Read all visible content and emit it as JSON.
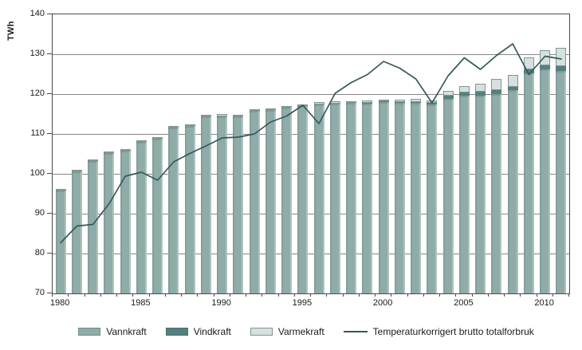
{
  "y_axis": {
    "title": "TWh"
  },
  "chart_data": {
    "type": "bar",
    "stacked": true,
    "title": "",
    "ylabel": "TWh",
    "ylim": [
      70,
      140
    ],
    "ytick_step": 10,
    "grid": true,
    "legend_position": "bottom",
    "years": [
      1980,
      1981,
      1982,
      1983,
      1984,
      1985,
      1986,
      1987,
      1988,
      1989,
      1990,
      1991,
      1992,
      1993,
      1994,
      1995,
      1996,
      1997,
      1998,
      1999,
      2000,
      2001,
      2002,
      2003,
      2004,
      2005,
      2006,
      2007,
      2008,
      2009,
      2010,
      2011
    ],
    "xtick_years": [
      1980,
      1985,
      1990,
      1995,
      2000,
      2005,
      2010
    ],
    "series": [
      {
        "name": "Vannkraft",
        "type": "bar",
        "color": "#8FACA8",
        "border_color": "#6F8F8B",
        "values": [
          95.9,
          100.7,
          103.2,
          105.2,
          105.8,
          108.0,
          108.9,
          111.7,
          112.0,
          114.4,
          114.5,
          114.4,
          115.9,
          116.0,
          116.6,
          117.0,
          117.5,
          117.7,
          117.8,
          117.8,
          118.0,
          117.9,
          117.8,
          117.4,
          118.8,
          119.6,
          119.6,
          120.1,
          121.0,
          125.3,
          126.3,
          125.8
        ]
      },
      {
        "name": "Vindkraft",
        "type": "bar",
        "color": "#55807D",
        "border_color": "#48716E",
        "values": [
          0,
          0,
          0,
          0,
          0,
          0,
          0,
          0,
          0,
          0,
          0,
          0,
          0,
          0,
          0,
          0,
          0,
          0,
          0,
          0.1,
          0.2,
          0.2,
          0.3,
          0.4,
          0.8,
          0.9,
          1.0,
          0.9,
          0.9,
          1.0,
          1.0,
          1.2
        ]
      },
      {
        "name": "Varmekraft",
        "type": "bar",
        "color": "#D6E0DF",
        "border_color": "#7F9794",
        "values": [
          0.3,
          0.3,
          0.4,
          0.4,
          0.4,
          0.4,
          0.4,
          0.4,
          0.4,
          0.5,
          0.5,
          0.5,
          0.4,
          0.4,
          0.4,
          0.5,
          0.5,
          0.5,
          0.5,
          0.5,
          0.5,
          0.5,
          0.8,
          0.7,
          1.2,
          1.5,
          2.0,
          2.9,
          2.9,
          2.9,
          3.7,
          4.6
        ]
      },
      {
        "name": "Temperaturkorrigert brutto totalforbruk",
        "type": "line",
        "color": "#36595C",
        "values": [
          82.7,
          86.9,
          87.3,
          92.5,
          99.4,
          100.4,
          98.4,
          103.0,
          105.1,
          107.0,
          109.0,
          109.2,
          110.0,
          113.0,
          114.5,
          117.2,
          112.6,
          120.2,
          122.9,
          124.9,
          128.2,
          126.5,
          123.8,
          117.8,
          124.6,
          129.1,
          126.2,
          129.7,
          132.6,
          124.9,
          129.5,
          128.8
        ]
      }
    ]
  }
}
